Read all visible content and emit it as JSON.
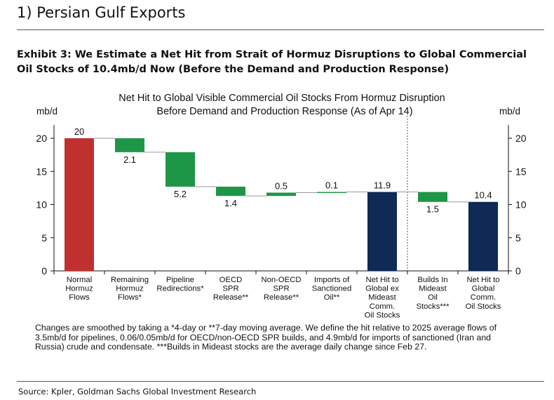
{
  "section": {
    "title": "1) Persian Gulf Exports"
  },
  "exhibit": {
    "title": "Exhibit 3: We Estimate a Net Hit from Strait of Hormuz Disruptions to Global Commercial Oil Stocks of 10.4mb/d Now (Before the Demand and Production Response)"
  },
  "chart_data": {
    "type": "bar",
    "subtype": "waterfall",
    "title_line1": "Net Hit to Global Visible Commercial Oil Stocks From Hormuz Disruption",
    "title_line2": "Before Demand and Production Response (As of Apr 14)",
    "ylabel_left": "mb/d",
    "ylabel_right": "mb/d",
    "ylim": [
      0,
      22
    ],
    "yticks": [
      0,
      5,
      10,
      15,
      20
    ],
    "categories": [
      [
        "Normal",
        "Hormuz",
        "Flows"
      ],
      [
        "Remaining",
        "Hormuz",
        "Flows*"
      ],
      [
        "Pipeline",
        "Redirections*"
      ],
      [
        "OECD",
        "SPR",
        "Release**"
      ],
      [
        "Non-OECD",
        "SPR",
        "Release**"
      ],
      [
        "Imports of",
        "Sanctioned",
        "Oil**"
      ],
      [
        "Net Hit to",
        "Global ex",
        "Mideast",
        "Comm.",
        "Oil Stocks"
      ],
      [
        "Builds In",
        "Mideast",
        "Oil",
        "Stocks***"
      ],
      [
        "Net Hit to",
        "Global",
        "Comm.",
        "Oil Stocks"
      ]
    ],
    "bars": [
      {
        "start": 0,
        "end": 20,
        "label": "20",
        "color": "#c0302f"
      },
      {
        "start": 20,
        "end": 17.9,
        "label": "2.1",
        "color": "#1e9648"
      },
      {
        "start": 17.9,
        "end": 12.7,
        "label": "5.2",
        "color": "#1e9648"
      },
      {
        "start": 12.7,
        "end": 11.3,
        "label": "1.4",
        "color": "#1e9648"
      },
      {
        "start": 11.3,
        "end": 11.8,
        "label": "0.5",
        "color": "#1e9648"
      },
      {
        "start": 11.8,
        "end": 11.9,
        "label": "0.1",
        "color": "#1e9648"
      },
      {
        "start": 0,
        "end": 11.9,
        "label": "11.9",
        "color": "#0e2a55"
      },
      {
        "start": 11.9,
        "end": 10.4,
        "label": "1.5",
        "color": "#1e9648"
      },
      {
        "start": 0,
        "end": 10.4,
        "label": "10.4",
        "color": "#0e2a55"
      }
    ],
    "divider_after_index": 6,
    "grid": false
  },
  "footnote": "Changes are smoothed by taking a *4-day or **7-day moving average. We define the hit relative to 2025 average flows of 3.5mb/d for pipelines, 0.06/0.05mb/d for OECD/non-OECD SPR builds, and 4.9mb/d for imports of sanctioned (Iran and Russia) crude and condensate. ***Builds in Mideast stocks are the average daily change since Feb 27.",
  "source": "Source: Kpler, Goldman Sachs Global Investment Research"
}
